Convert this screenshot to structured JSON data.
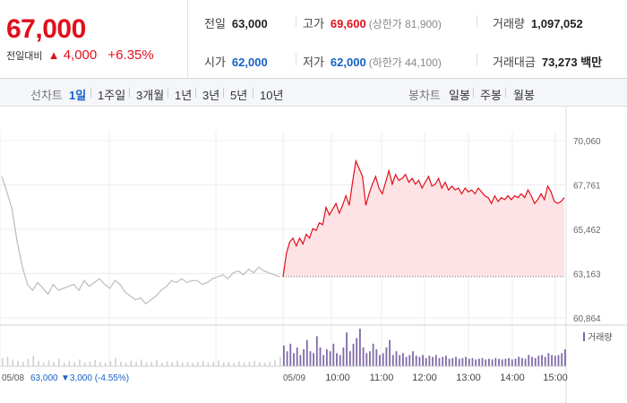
{
  "header": {
    "price": "67,000",
    "change_label": "전일대비",
    "change_arrow": "▲",
    "change_amount": "4,000",
    "change_pct": "+6.35%"
  },
  "stats": {
    "prev_close": {
      "label": "전일",
      "value": "63,000"
    },
    "high": {
      "label": "고가",
      "value": "69,600",
      "sub": "(상한가 81,900)"
    },
    "volume": {
      "label": "거래량",
      "value": "1,097,052"
    },
    "open": {
      "label": "시가",
      "value": "62,000"
    },
    "low": {
      "label": "저가",
      "value": "62,000",
      "sub": "(하한가 44,100)"
    },
    "trade_value": {
      "label": "거래대금",
      "value": "73,273 백만"
    }
  },
  "tabs": {
    "line_label": "선차트",
    "line_tabs": [
      "1일",
      "1주일",
      "3개월",
      "1년",
      "3년",
      "5년",
      "10년"
    ],
    "active_line_tab": "1일",
    "candle_label": "봉차트",
    "candle_tabs": [
      "일봉",
      "주봉",
      "월봉"
    ]
  },
  "colors": {
    "up": "#e0101c",
    "down": "#1561c7",
    "prev_day_line": "#bcbcbc",
    "volume_bar": "#7f6aa8"
  },
  "chart_data": {
    "type": "line",
    "y_ticks": [
      "70,060",
      "67,761",
      "65,462",
      "63,163",
      "60,864"
    ],
    "ylim": [
      60864,
      70060
    ],
    "prev_close_reference": 63000,
    "volume_legend": "거래량",
    "x_ticks": [
      "10:00",
      "11:00",
      "12:00",
      "13:00",
      "14:00",
      "15:00"
    ],
    "prev_day": {
      "date_label": "05/08",
      "close_label": "63,000",
      "change_label": "▼3,000 (-4.55%)",
      "values": [
        68200,
        67400,
        66500,
        64800,
        63500,
        62600,
        62300,
        62700,
        62400,
        62100,
        62600,
        62300,
        62400,
        62500,
        62600,
        62300,
        62800,
        62500,
        62700,
        62900,
        62600,
        62400,
        62800,
        62600,
        62200,
        62000,
        61800,
        61900,
        61600,
        61800,
        62000,
        62300,
        62500,
        62800,
        62700,
        62900,
        62700,
        62800,
        62800,
        62600,
        62700,
        62900,
        63000,
        63100,
        62900,
        63200,
        63300,
        63100,
        63400,
        63200,
        63500,
        63300,
        63200,
        63100,
        63000
      ]
    },
    "today": {
      "date_label": "05/09",
      "values": [
        63000,
        64200,
        64800,
        65000,
        64600,
        65000,
        64700,
        65200,
        65000,
        65500,
        65400,
        65800,
        65700,
        66600,
        66200,
        66500,
        66800,
        66300,
        66700,
        67200,
        66700,
        67900,
        69000,
        68600,
        68200,
        66700,
        67300,
        67800,
        68200,
        67600,
        67300,
        67900,
        68500,
        67800,
        68300,
        68000,
        68100,
        68300,
        67900,
        68100,
        67800,
        68000,
        67600,
        67900,
        68200,
        67700,
        67800,
        68100,
        67600,
        67900,
        67500,
        67700,
        67500,
        67600,
        67300,
        67600,
        67400,
        67500,
        67300,
        67600,
        67400,
        67200,
        67100,
        66800,
        67200,
        66900,
        67100,
        67000,
        67200,
        67000,
        67200,
        67100,
        67300,
        67100,
        67500,
        67200,
        66800,
        67000,
        67300,
        67000,
        67700,
        67400,
        66900,
        66800,
        66900,
        67100
      ]
    },
    "prev_volume": [
      0.22,
      0.25,
      0.18,
      0.15,
      0.12,
      0.2,
      0.28,
      0.14,
      0.1,
      0.16,
      0.12,
      0.2,
      0.09,
      0.14,
      0.11,
      0.18,
      0.1,
      0.13,
      0.17,
      0.12,
      0.1,
      0.14,
      0.22,
      0.12,
      0.1,
      0.15,
      0.12,
      0.18,
      0.1,
      0.12,
      0.16,
      0.1,
      0.13,
      0.11,
      0.15,
      0.1,
      0.12,
      0.09,
      0.11,
      0.14,
      0.1,
      0.12,
      0.15,
      0.1,
      0.12,
      0.09,
      0.13,
      0.1,
      0.12,
      0.14,
      0.11,
      0.1,
      0.12,
      0.16,
      0.25
    ],
    "today_volume": [
      0.55,
      0.4,
      0.6,
      0.35,
      0.5,
      0.3,
      0.45,
      0.7,
      0.4,
      0.35,
      0.8,
      0.5,
      0.3,
      0.45,
      0.4,
      0.6,
      0.35,
      0.3,
      0.5,
      0.9,
      0.4,
      0.6,
      0.75,
      1.0,
      0.5,
      0.35,
      0.4,
      0.6,
      0.45,
      0.3,
      0.35,
      0.5,
      0.7,
      0.3,
      0.4,
      0.3,
      0.35,
      0.25,
      0.3,
      0.4,
      0.28,
      0.25,
      0.3,
      0.22,
      0.28,
      0.25,
      0.3,
      0.22,
      0.25,
      0.28,
      0.2,
      0.22,
      0.25,
      0.2,
      0.22,
      0.25,
      0.2,
      0.22,
      0.18,
      0.2,
      0.22,
      0.18,
      0.2,
      0.18,
      0.22,
      0.2,
      0.18,
      0.2,
      0.22,
      0.18,
      0.2,
      0.25,
      0.22,
      0.2,
      0.3,
      0.25,
      0.22,
      0.28,
      0.3,
      0.25,
      0.35,
      0.3,
      0.28,
      0.3,
      0.35,
      0.45
    ]
  }
}
